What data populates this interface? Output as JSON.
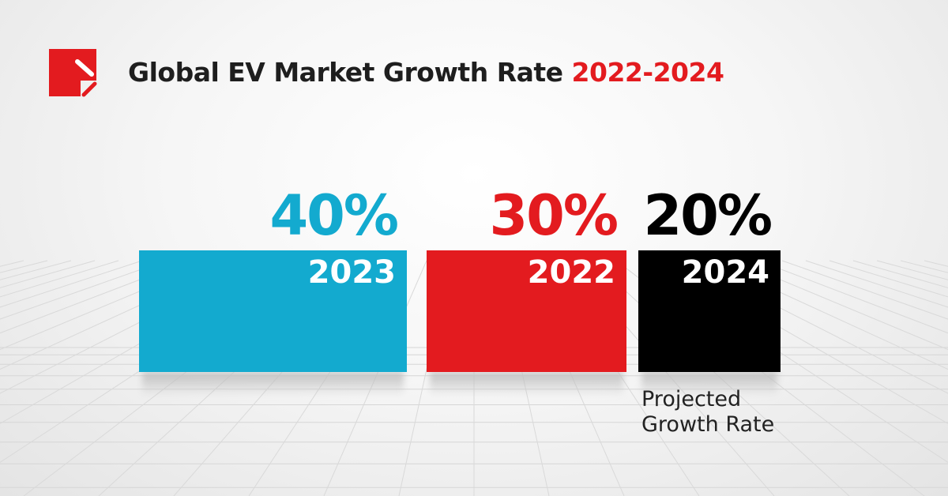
{
  "header": {
    "title_main": "Global EV Market Growth Rate",
    "title_accent": "2022-2024",
    "logo": "red-square-slash-logo"
  },
  "colors": {
    "accent": "#e31b1f",
    "blue": "#13aacf",
    "black": "#000000"
  },
  "chart_data": {
    "type": "bar",
    "title": "Global EV Market Growth Rate 2022-2024",
    "categories": [
      "2023",
      "2022",
      "2024"
    ],
    "values": [
      40,
      30,
      20
    ],
    "labels": [
      "40%",
      "30%",
      "20%"
    ],
    "colors": [
      "#13aacf",
      "#e31b1f",
      "#000000"
    ],
    "annotations": [
      "Projected Growth Rate"
    ]
  },
  "note": {
    "line1": "Projected",
    "line2": "Growth Rate"
  }
}
